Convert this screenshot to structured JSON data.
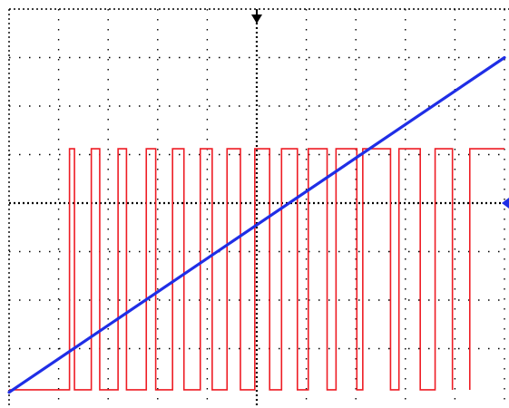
{
  "chart_data": {
    "type": "line",
    "title": "",
    "xlabel": "",
    "ylabel": "",
    "grid": true,
    "grid_style": "dotted",
    "divisions": {
      "x": 10,
      "y": 8
    },
    "xlim": [
      0,
      10
    ],
    "ylim": [
      0,
      8
    ],
    "colors": {
      "background": "#ffffff",
      "grid": "#000000",
      "pwm": "#ee1c24",
      "ramp": "#1f2ee6",
      "marker": "#000000"
    },
    "markers": {
      "trigger_x": 5,
      "ramp_level_y": 4
    },
    "series": [
      {
        "kind": "pwm",
        "low": 0.15,
        "high": 5.12,
        "pulses": [
          [
            1.22,
            1.32
          ],
          [
            1.66,
            1.83
          ],
          [
            2.2,
            2.37
          ],
          [
            2.77,
            2.96
          ],
          [
            3.3,
            3.53
          ],
          [
            3.86,
            4.1
          ],
          [
            4.4,
            4.67
          ],
          [
            4.96,
            5.26
          ],
          [
            5.5,
            5.82
          ],
          [
            6.04,
            6.42
          ],
          [
            6.6,
            7.02
          ],
          [
            7.14,
            7.7
          ],
          [
            7.87,
            8.3
          ],
          [
            8.6,
            8.95
          ]
        ],
        "x_start": 0,
        "x_end": 10
      },
      {
        "kind": "ramp",
        "x": [
          0,
          10
        ],
        "y": [
          0.1,
          7.0
        ]
      }
    ]
  }
}
